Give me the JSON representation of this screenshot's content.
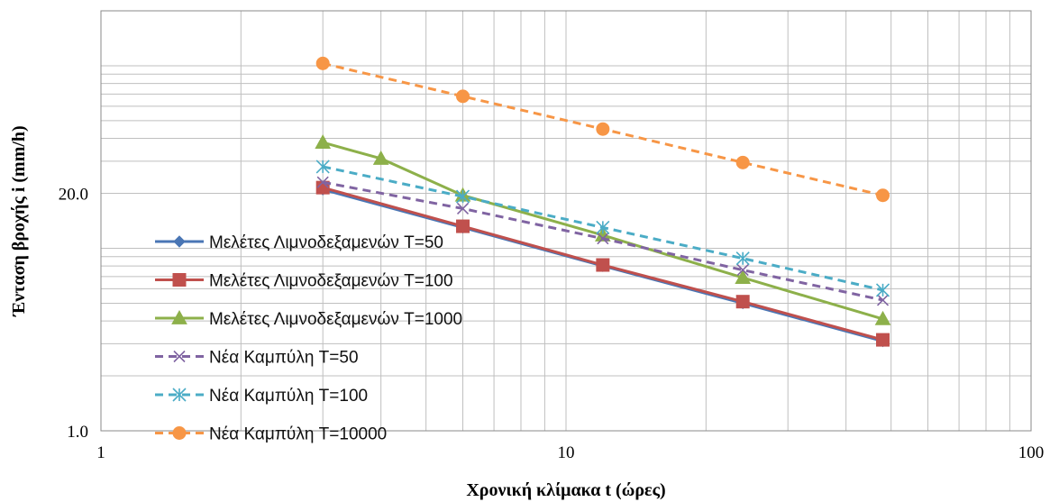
{
  "chart_data": {
    "type": "line",
    "x_scale": "log",
    "y_scale": "log",
    "xlim": [
      1,
      100
    ],
    "ylim": [
      1.0,
      200
    ],
    "x_ticks": [
      "1",
      "10",
      "100"
    ],
    "y_ticks": [
      "1.0",
      "20.0"
    ],
    "xlabel": "Χρονική κλίμακα t (ώρες)",
    "ylabel": "Ένταση βροχής i (mm/h)",
    "grid": true,
    "legend_position": "left",
    "series": [
      {
        "name": "Μελέτες Λιμνοδεξαμενών T=50",
        "color": "#4a76b5",
        "style": "solid",
        "marker": "diamond",
        "x": [
          3,
          6,
          12,
          24,
          48
        ],
        "y": [
          21.0,
          13.0,
          8.0,
          5.0,
          3.1
        ]
      },
      {
        "name": "Μελέτες Λιμνοδεξαμενών T=100",
        "color": "#c0504d",
        "style": "solid",
        "marker": "square",
        "x": [
          3,
          6,
          12,
          24,
          48
        ],
        "y": [
          21.5,
          13.2,
          8.1,
          5.1,
          3.15
        ]
      },
      {
        "name": "Μελέτες Λιμνοδεξαμενών T=1000",
        "color": "#8db04a",
        "style": "solid",
        "marker": "triangle",
        "x": [
          3,
          4,
          6,
          12,
          24,
          48
        ],
        "y": [
          38,
          31,
          19.5,
          11.8,
          6.9,
          4.1
        ]
      },
      {
        "name": "Νέα Καμπύλη T=50",
        "color": "#8064a2",
        "style": "dashed",
        "marker": "x",
        "x": [
          3,
          6,
          12,
          24,
          48
        ],
        "y": [
          23,
          16.5,
          11.3,
          7.6,
          5.2
        ]
      },
      {
        "name": "Νέα Καμπύλη T=100",
        "color": "#4bacc6",
        "style": "dashed",
        "marker": "star",
        "x": [
          3,
          6,
          12,
          24,
          48
        ],
        "y": [
          28,
          19.2,
          13.0,
          8.8,
          5.9
        ]
      },
      {
        "name": "Νέα Καμπύλη T=10000",
        "color": "#f79646",
        "style": "dashed",
        "marker": "circle",
        "x": [
          3,
          6,
          12,
          24,
          48
        ],
        "y": [
          103,
          68,
          45,
          29.5,
          19.5
        ]
      }
    ]
  }
}
